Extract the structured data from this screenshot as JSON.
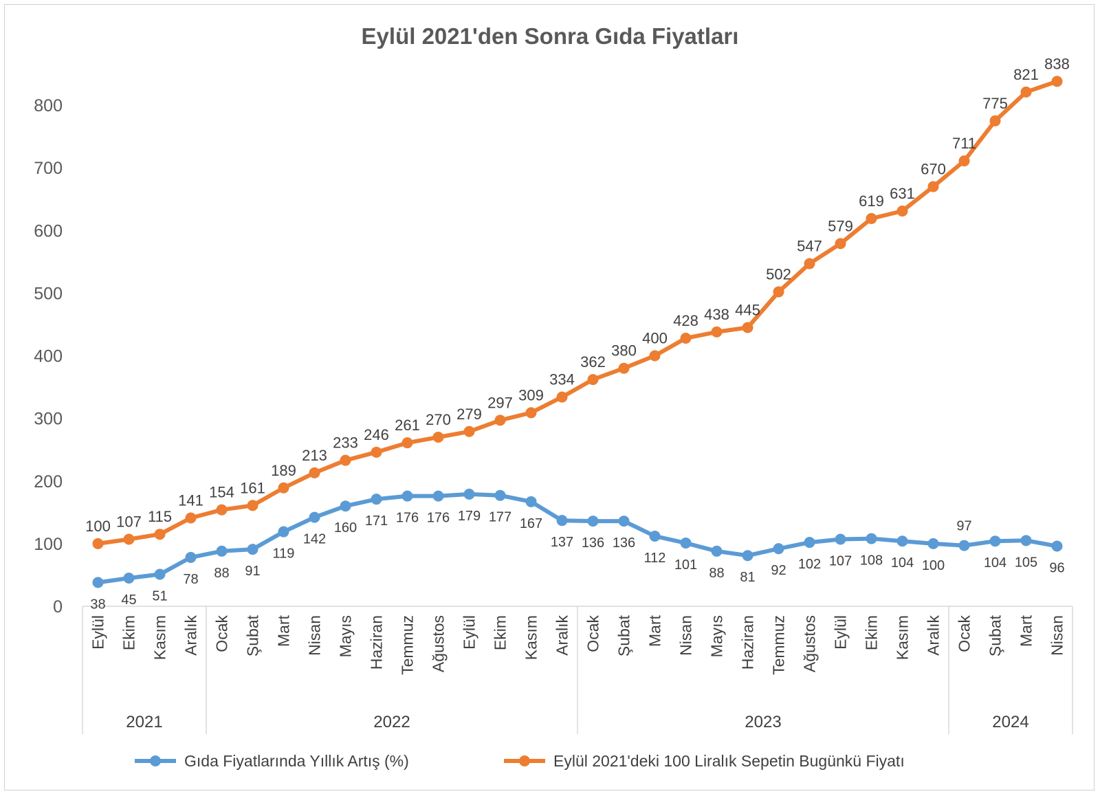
{
  "chart_data": {
    "type": "line",
    "title": "Eylül 2021'den Sonra Gıda Fiyatları",
    "ylim": [
      0,
      800
    ],
    "yticks": [
      0,
      100,
      200,
      300,
      400,
      500,
      600,
      700,
      800
    ],
    "grid": false,
    "legend_position": "bottom",
    "categories": [
      "Eylül",
      "Ekim",
      "Kasım",
      "Aralık",
      "Ocak",
      "Şubat",
      "Mart",
      "Nisan",
      "Mayıs",
      "Haziran",
      "Temmuz",
      "Ağustos",
      "Eylül",
      "Ekim",
      "Kasım",
      "Aralık",
      "Ocak",
      "Şubat",
      "Mart",
      "Nisan",
      "Mayıs",
      "Haziran",
      "Temmuz",
      "Ağustos",
      "Eylül",
      "Ekim",
      "Kasım",
      "Aralık",
      "Ocak",
      "Şubat",
      "Mart",
      "Nisan"
    ],
    "year_groups": [
      {
        "label": "2021",
        "count": 4
      },
      {
        "label": "2022",
        "count": 12
      },
      {
        "label": "2023",
        "count": 12
      },
      {
        "label": "2024",
        "count": 4
      }
    ],
    "series": [
      {
        "name": "Gıda Fiyatlarında Yıllık Artış (%)",
        "color": "#5b9bd5",
        "values": [
          38,
          45,
          51,
          78,
          88,
          91,
          119,
          142,
          160,
          171,
          176,
          176,
          179,
          177,
          167,
          137,
          136,
          136,
          112,
          101,
          88,
          81,
          92,
          102,
          107,
          108,
          104,
          100,
          97,
          104,
          105,
          96
        ]
      },
      {
        "name": "Eylül 2021'deki 100 Liralık Sepetin Bugünkü  Fiyatı",
        "color": "#ed7d31",
        "values": [
          100,
          107,
          115,
          141,
          154,
          161,
          189,
          213,
          233,
          246,
          261,
          270,
          279,
          297,
          309,
          334,
          362,
          380,
          400,
          428,
          438,
          445,
          502,
          547,
          579,
          619,
          631,
          670,
          711,
          775,
          821,
          838
        ]
      }
    ]
  }
}
